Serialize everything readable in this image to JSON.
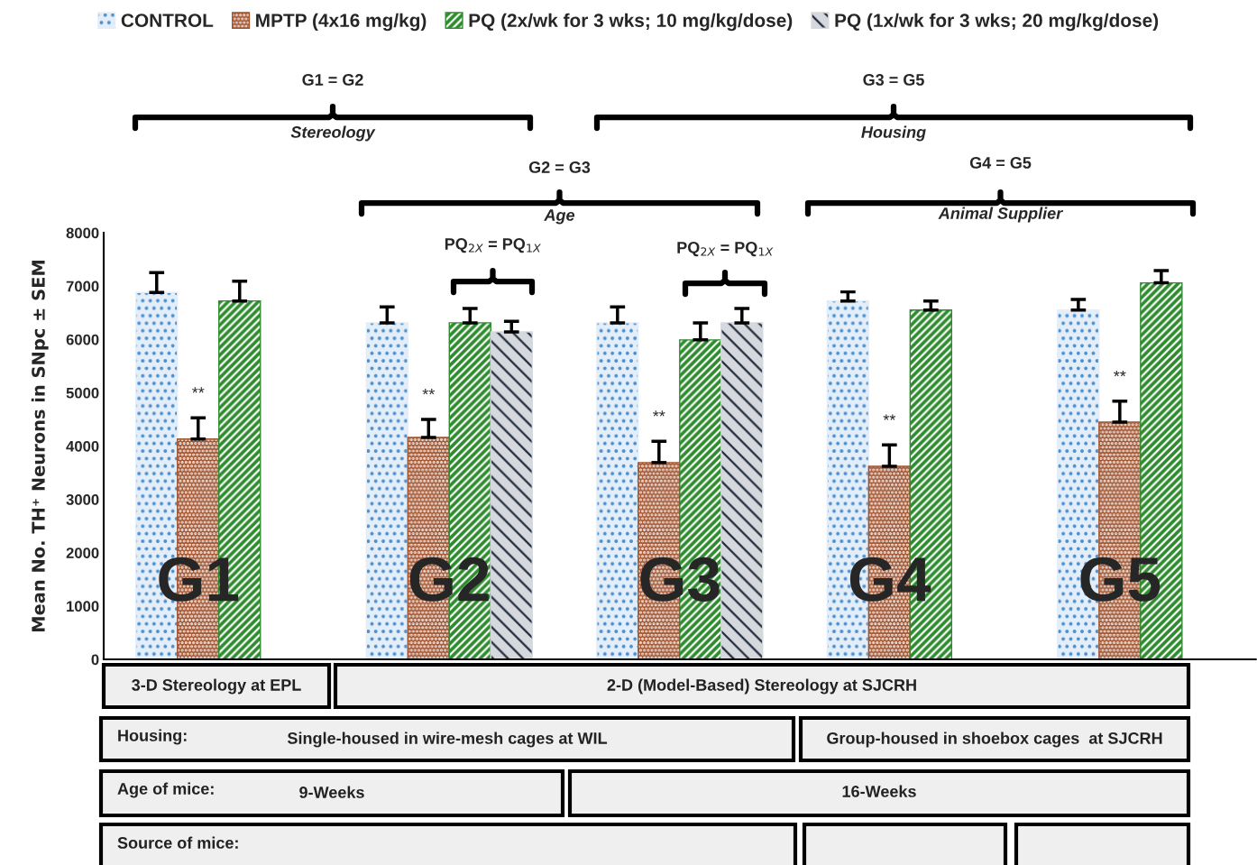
{
  "chart_data": {
    "type": "bar",
    "ylabel": "Mean No. TH⁺ Neurons in SNpc ± SEM",
    "categories": [
      "G1",
      "G2",
      "G3",
      "G4",
      "G5"
    ],
    "series": [
      {
        "name": "CONTROL",
        "color": "#e3eef9",
        "values": [
          6880,
          6310,
          6310,
          6720,
          6550
        ],
        "errors": [
          [
            6880,
            7250
          ],
          [
            6310,
            6610
          ],
          [
            6310,
            6610
          ],
          [
            6720,
            6890
          ],
          [
            6550,
            6750
          ]
        ]
      },
      {
        "name": "MPTP (4x16 mg/kg)",
        "color": "#a0522d",
        "values": [
          4130,
          4160,
          3690,
          3620,
          4450
        ],
        "errors": [
          [
            4130,
            4530
          ],
          [
            4160,
            4500
          ],
          [
            3690,
            4090
          ],
          [
            3620,
            4020
          ],
          [
            4450,
            4840
          ]
        ]
      },
      {
        "name": "PQ (2x/wk for 3 wks; 10 mg/kg/dose)",
        "color": "#2e8b2e",
        "values": [
          6720,
          6310,
          5990,
          6550,
          7060
        ],
        "errors": [
          [
            6720,
            7090
          ],
          [
            6310,
            6580
          ],
          [
            5990,
            6310
          ],
          [
            6550,
            6720
          ],
          [
            7060,
            7290
          ]
        ]
      },
      {
        "name": "PQ (1x/wk for 3 wks; 20 mg/kg/dose)",
        "color": "#d5d8dd",
        "values": [
          null,
          6140,
          6310,
          null,
          null
        ],
        "errors": [
          null,
          [
            6140,
            6340
          ],
          [
            6310,
            6580
          ],
          null,
          null
        ]
      }
    ],
    "ylim": [
      0,
      8000
    ],
    "yticks": [
      0,
      1000,
      2000,
      3000,
      4000,
      5000,
      6000,
      7000,
      8000
    ],
    "grid": false,
    "legend": "top",
    "tick_labels": "y",
    "annotations": [
      "G1 = G2",
      "Stereology",
      "G3 = G5",
      "Housing",
      "G2 = G3",
      "Age",
      "G4 = G5",
      "Animal Supplier",
      "PQ$_{2X}$ = PQ$_{1X}$",
      "PQ$_{2X}$ = PQ$_{1X}$",
      "**",
      "**",
      "**",
      "**",
      "**",
      "3-D Stereology at EPL",
      "2-D (Model-Based) Stereology at SJCRH",
      "Housing:",
      "Single-housed in wire-mesh cages at WIL",
      "Group-housed in shoebox cages  at SJCRH",
      "Age of mice:",
      "9-Weeks",
      "16-Weeks",
      "Source of mice:"
    ]
  }
}
